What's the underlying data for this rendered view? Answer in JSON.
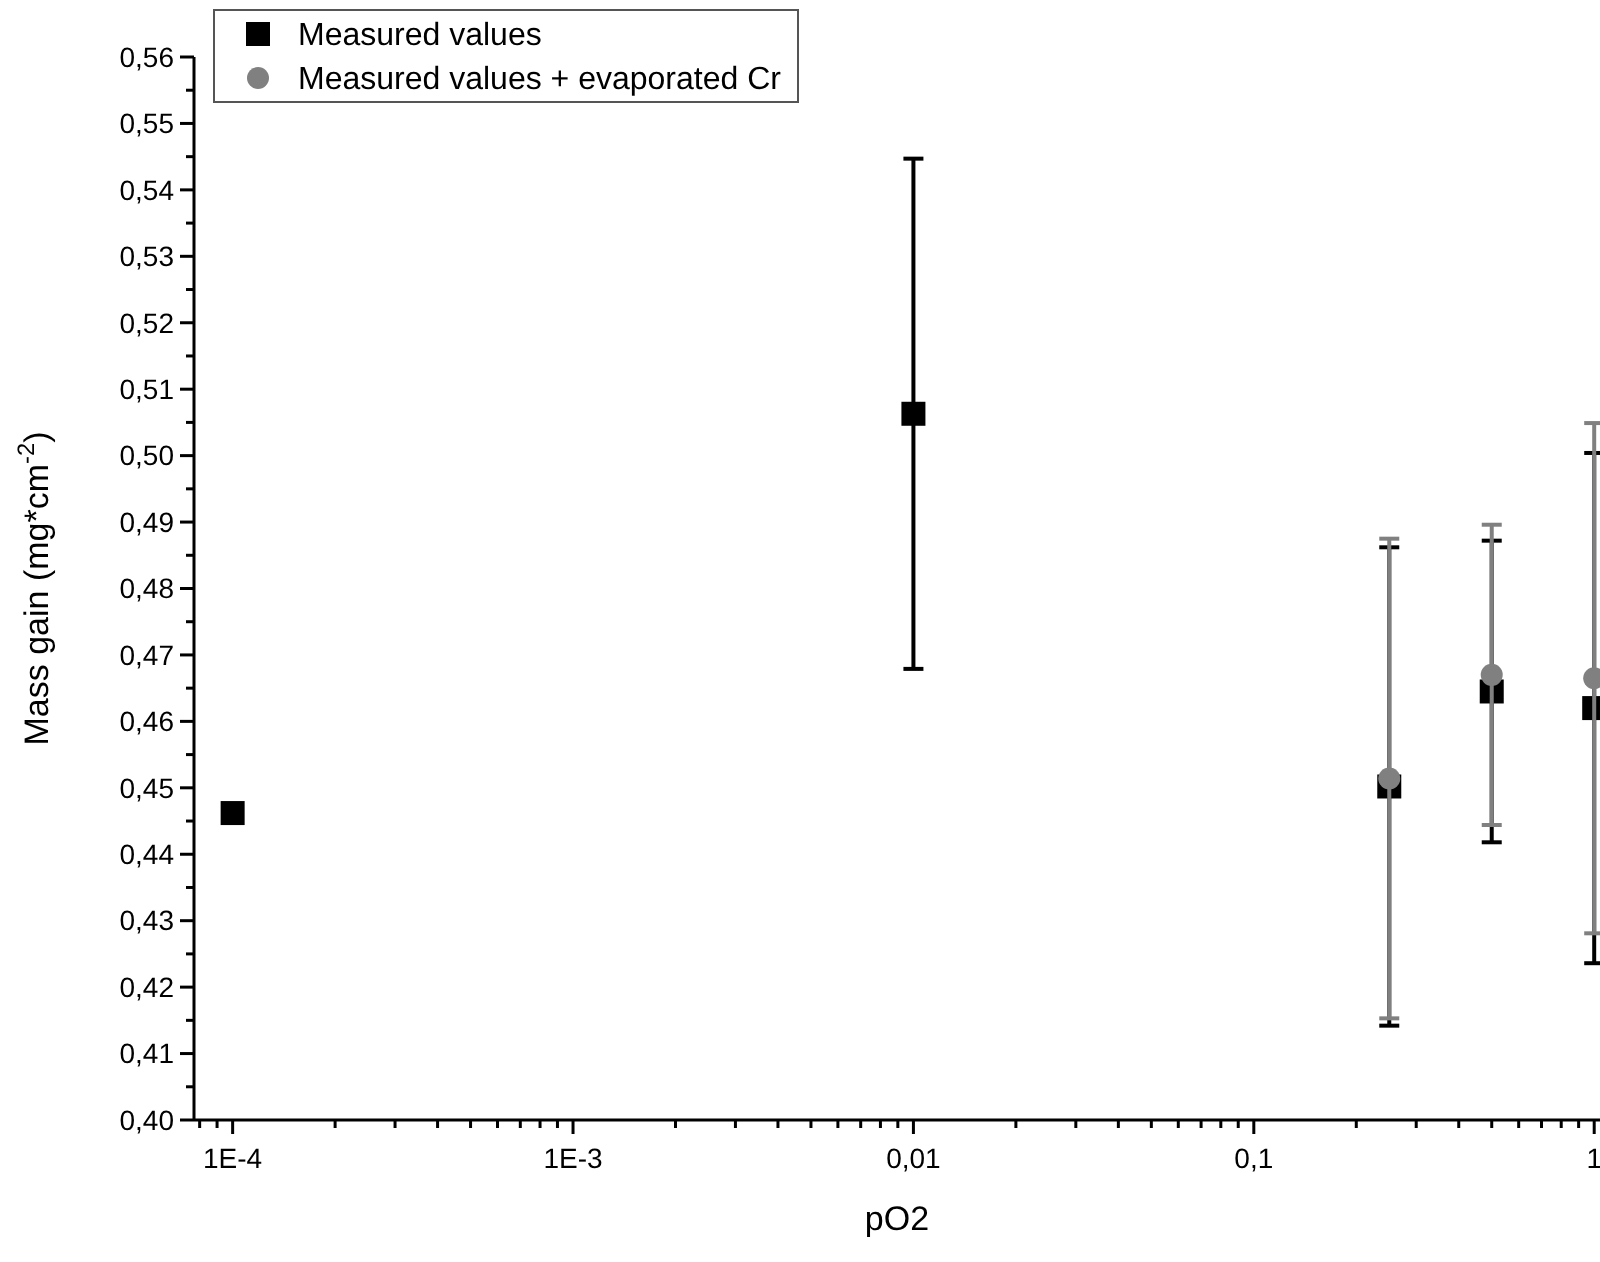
{
  "chart_data": {
    "type": "scatter",
    "xlabel": "pO2",
    "ylabel": "Mass gain (mg*cm$^{-2}$)",
    "log": "x",
    "legend": "top left",
    "grid": false,
    "xlim": [
      7.7e-05,
      1.04
    ],
    "ylim": [
      0.4,
      0.56
    ],
    "xticks": [
      {
        "value": 0.0001,
        "label": "1E-4"
      },
      {
        "value": 0.001,
        "label": "1E-3"
      },
      {
        "value": 0.01,
        "label": "0,01"
      },
      {
        "value": 0.1,
        "label": "0,1"
      },
      1,
      {
        "value": 8e-05,
        "label": null
      },
      {
        "value": 9e-05,
        "label": null
      },
      {
        "value": 0.0002,
        "label": null
      },
      {
        "value": 0.0003,
        "label": null
      },
      {
        "value": 0.0004,
        "label": null
      },
      {
        "value": 0.0005,
        "label": null
      },
      {
        "value": 0.0006,
        "label": null
      },
      {
        "value": 0.0007,
        "label": null
      },
      {
        "value": 0.0008,
        "label": null
      },
      {
        "value": 0.0009,
        "label": null
      },
      {
        "value": 0.002,
        "label": null
      },
      {
        "value": 0.003,
        "label": null
      },
      {
        "value": 0.004,
        "label": null
      },
      {
        "value": 0.005,
        "label": null
      },
      {
        "value": 0.006,
        "label": null
      },
      {
        "value": 0.007,
        "label": null
      },
      {
        "value": 0.008,
        "label": null
      },
      {
        "value": 0.009,
        "label": null
      },
      {
        "value": 0.02,
        "label": null
      },
      {
        "value": 0.03,
        "label": null
      },
      {
        "value": 0.04,
        "label": null
      },
      {
        "value": 0.05,
        "label": null
      },
      {
        "value": 0.06,
        "label": null
      },
      {
        "value": 0.07,
        "label": null
      },
      {
        "value": 0.08,
        "label": null
      },
      {
        "value": 0.09,
        "label": null
      },
      {
        "value": 0.2,
        "label": null
      },
      {
        "value": 0.3,
        "label": null
      },
      {
        "value": 0.4,
        "label": null
      },
      {
        "value": 0.5,
        "label": null
      },
      {
        "value": 0.6,
        "label": null
      },
      {
        "value": 0.7,
        "label": null
      },
      {
        "value": 0.8,
        "label": null
      },
      {
        "value": 0.9,
        "label": null
      }
    ],
    "yticks": [
      {
        "value": 0.4,
        "label": "0,40"
      },
      {
        "value": 0.41,
        "label": "0,41"
      },
      {
        "value": 0.42,
        "label": "0,42"
      },
      {
        "value": 0.43,
        "label": "0,43"
      },
      {
        "value": 0.44,
        "label": "0,44"
      },
      {
        "value": 0.45,
        "label": "0,45"
      },
      {
        "value": 0.46,
        "label": "0,46"
      },
      {
        "value": 0.47,
        "label": "0,47"
      },
      {
        "value": 0.48,
        "label": "0,48"
      },
      {
        "value": 0.49,
        "label": "0,49"
      },
      {
        "value": 0.5,
        "label": "0,50"
      },
      {
        "value": 0.51,
        "label": "0,51"
      },
      {
        "value": 0.52,
        "label": "0,52"
      },
      {
        "value": 0.53,
        "label": "0,53"
      },
      {
        "value": 0.54,
        "label": "0,54"
      },
      {
        "value": 0.55,
        "label": "0,55"
      },
      {
        "value": 0.56,
        "label": "0,56"
      },
      {
        "value": 0.405,
        "label": null
      },
      {
        "value": 0.415,
        "label": null
      },
      {
        "value": 0.425,
        "label": null
      },
      {
        "value": 0.435,
        "label": null
      },
      {
        "value": 0.445,
        "label": null
      },
      {
        "value": 0.455,
        "label": null
      },
      {
        "value": 0.465,
        "label": null
      },
      {
        "value": 0.475,
        "label": null
      },
      {
        "value": 0.485,
        "label": null
      },
      {
        "value": 0.495,
        "label": null
      },
      {
        "value": 0.505,
        "label": null
      },
      {
        "value": 0.515,
        "label": null
      },
      {
        "value": 0.525,
        "label": null
      },
      {
        "value": 0.535,
        "label": null
      },
      {
        "value": 0.545,
        "label": null
      },
      {
        "value": 0.555,
        "label": null
      }
    ],
    "series": [
      {
        "name": "Measured values",
        "color": "#000000",
        "marker": "square",
        "x": [
          0.0001,
          0.01,
          0.25,
          0.5,
          1
        ],
        "values": [
          0.4462,
          0.5063,
          0.4502,
          0.4645,
          0.462
        ],
        "errors": [
          null,
          0.0384,
          0.036,
          0.0227,
          0.0384
        ]
      },
      {
        "name": "Measured values + evaporated Cr",
        "color": "#808080",
        "marker": "circle",
        "x": [
          0.25,
          0.5,
          1
        ],
        "values": [
          0.4514,
          0.467,
          0.4665
        ],
        "errors": [
          0.0361,
          0.0226,
          0.0384
        ]
      }
    ]
  }
}
